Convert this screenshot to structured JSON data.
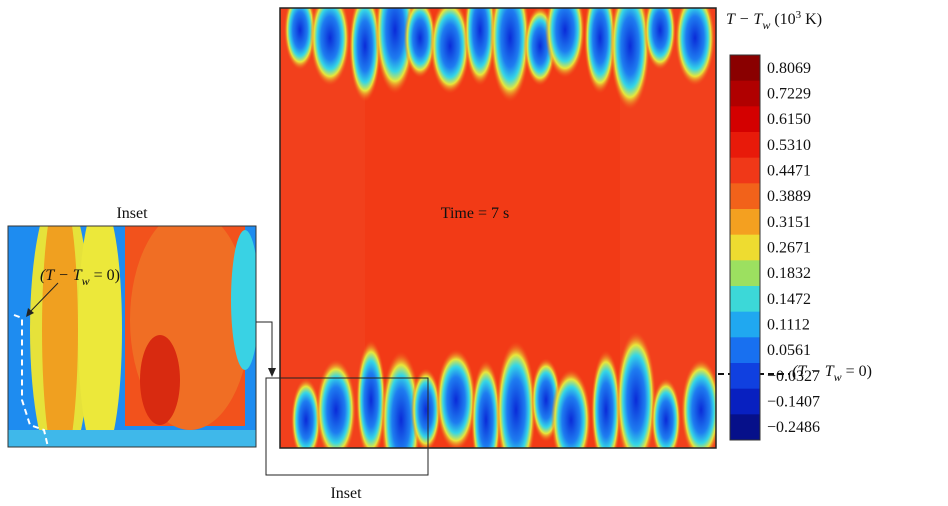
{
  "figure": {
    "main_label": "Time = 7 s",
    "inset_label_top": "Inset",
    "inset_label_bottom": "Inset",
    "colorbar": {
      "title": [
        "T − T",
        "w",
        " (10",
        "3",
        " K)"
      ],
      "labels": [
        "0.8069",
        "0.7229",
        "0.6150",
        "0.5310",
        "0.4471",
        "0.3889",
        "0.3151",
        "0.2671",
        "0.1832",
        "0.1472",
        "0.1112",
        "0.0561",
        "−0.0327",
        "−0.1407",
        "−0.2486"
      ]
    },
    "isoline_annotation": [
      "(T − T",
      "w",
      " = 0)"
    ],
    "inset_annotation": [
      "(T − T",
      "w",
      " = 0)"
    ]
  }
}
